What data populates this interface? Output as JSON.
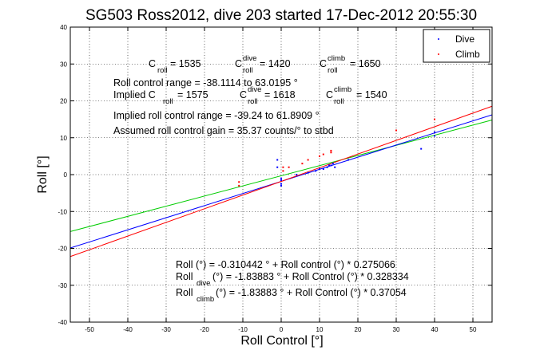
{
  "chart_data": {
    "type": "scatter",
    "title": "SG503 Ross2012, dive 203 started 17-Dec-2012 20:55:30",
    "xlabel": "Roll Control [°]",
    "ylabel": "Roll [°]",
    "xlim": [
      -55,
      55
    ],
    "ylim": [
      -40,
      40
    ],
    "xticks": [
      -50,
      -40,
      -30,
      -20,
      -10,
      0,
      10,
      20,
      30,
      40,
      50
    ],
    "yticks": [
      -40,
      -30,
      -20,
      -10,
      0,
      10,
      20,
      30,
      40
    ],
    "grid": true,
    "legend": {
      "position": "top-right",
      "entries": [
        {
          "label": "Dive",
          "color": "#0000ff"
        },
        {
          "label": "Climb",
          "color": "#ff0000"
        }
      ]
    },
    "series": [
      {
        "name": "Dive",
        "color": "#0000ff",
        "points": [
          [
            -1,
            2
          ],
          [
            -1,
            4
          ],
          [
            0,
            -1
          ],
          [
            0,
            -2.5
          ],
          [
            0,
            -3
          ],
          [
            0,
            -1.5
          ],
          [
            4,
            0
          ],
          [
            7,
            0.5
          ],
          [
            9,
            1
          ],
          [
            10,
            1.5
          ],
          [
            11,
            1.5
          ],
          [
            12,
            2
          ],
          [
            12.5,
            2.5
          ],
          [
            13,
            2.5
          ],
          [
            13.5,
            3
          ],
          [
            14,
            2
          ],
          [
            17.5,
            4
          ],
          [
            36.5,
            7
          ],
          [
            40,
            10.5
          ],
          [
            40,
            11.5
          ]
        ]
      },
      {
        "name": "Climb",
        "color": "#ff0000",
        "points": [
          [
            -11,
            -2
          ],
          [
            -11,
            -3
          ],
          [
            0.5,
            1
          ],
          [
            0.5,
            2
          ],
          [
            2,
            2
          ],
          [
            5.5,
            3
          ],
          [
            7,
            4
          ],
          [
            10,
            5
          ],
          [
            11,
            5.5
          ],
          [
            13,
            6
          ],
          [
            13,
            6.5
          ],
          [
            30,
            12
          ],
          [
            40,
            15
          ]
        ]
      }
    ],
    "fit_lines": [
      {
        "name": "overall fit",
        "color": "#00cc00",
        "intercept": -0.310442,
        "slope": 0.275066
      },
      {
        "name": "dive fit",
        "color": "#0000ff",
        "intercept": -1.83883,
        "slope": 0.328334
      },
      {
        "name": "climb fit",
        "color": "#ff0000",
        "intercept": -1.83883,
        "slope": 0.37054
      }
    ],
    "annotations": {
      "croll_line": {
        "a_base": "C",
        "a_sub": "roll",
        "a_val": " = 1535",
        "b_base": "C",
        "b_sup": "dive",
        "b_sub": "roll",
        "b_val": " = 1420",
        "c_base": "C",
        "c_sup": "climb",
        "c_sub": "roll",
        "c_val": " = 1650"
      },
      "roll_range": "Roll control range = -38.1114 to 63.0195 °",
      "implied_line": {
        "a_text": "Implied C",
        "a_sub": "roll",
        "a_val": " = 1575",
        "b_base": "C",
        "b_sup": "dive",
        "b_sub": "roll",
        "b_val": " = 1618",
        "c_base": "C",
        "c_sup": "climb",
        "c_sub": "roll",
        "c_val": " = 1540"
      },
      "implied_range": "Implied roll control range = -39.24 to 61.8909 °",
      "gain": "Assumed roll control gain = 35.37 counts/° to stbd",
      "eq1": "Roll (°) = -0.310442 ° + Roll control (°) * 0.275066",
      "eq2": {
        "base": "Roll",
        "sub": "dive",
        "rest": " (°) = -1.83883 ° + Roll Control (°) * 0.328334"
      },
      "eq3": {
        "base": "Roll",
        "sub": "climb",
        "rest": " (°) = -1.83883 ° + Roll Control (°) * 0.37054"
      }
    }
  }
}
